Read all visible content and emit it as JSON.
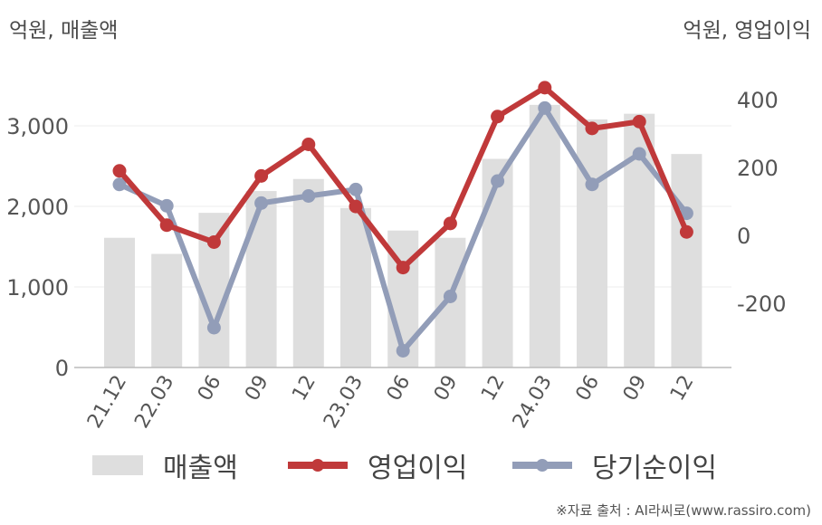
{
  "units": {
    "left": "억원, 매출액",
    "right": "억원, 영업이익"
  },
  "legend": {
    "bar": "매출액",
    "line1": "영업이익",
    "line2": "당기순이익"
  },
  "source": "※자료 출처 : AI라씨로(www.rassiro.com)",
  "colors": {
    "bar": "#dedede",
    "operating": "#c0393a",
    "net": "#929db8",
    "axis": "#bbbbbb",
    "grid": "#eeeeee",
    "tick": "#555555"
  },
  "chart_data": {
    "type": "bar",
    "categories": [
      "21.12",
      "22.03",
      "06",
      "09",
      "12",
      "23.03",
      "06",
      "09",
      "12",
      "24.03",
      "06",
      "09",
      "12"
    ],
    "left_axis": {
      "ylim": [
        0,
        3500
      ],
      "ticks": [
        0,
        1000,
        2000,
        3000
      ],
      "tick_labels": [
        "0",
        "1,000",
        "2,000",
        "3,000"
      ]
    },
    "right_axis": {
      "ylim": [
        -400,
        500
      ],
      "ticks": [
        -200,
        0,
        200,
        400
      ],
      "tick_labels": [
        "-200",
        "0",
        "200",
        "400"
      ]
    },
    "series": [
      {
        "name": "매출액",
        "type": "bar",
        "axis": "left",
        "values": [
          1610,
          1410,
          1920,
          2190,
          2340,
          1980,
          1700,
          1610,
          2590,
          3260,
          3080,
          3150,
          2650
        ]
      },
      {
        "name": "영업이익",
        "type": "line",
        "axis": "right",
        "values": [
          190,
          30,
          -20,
          175,
          268,
          85,
          -95,
          35,
          350,
          435,
          315,
          335,
          10
        ]
      },
      {
        "name": "당기순이익",
        "type": "line",
        "axis": "right",
        "values": [
          150,
          87,
          -272,
          95,
          116,
          135,
          -340,
          -180,
          160,
          375,
          150,
          240,
          65
        ]
      }
    ],
    "grid": true,
    "legend_position": "bottom"
  }
}
